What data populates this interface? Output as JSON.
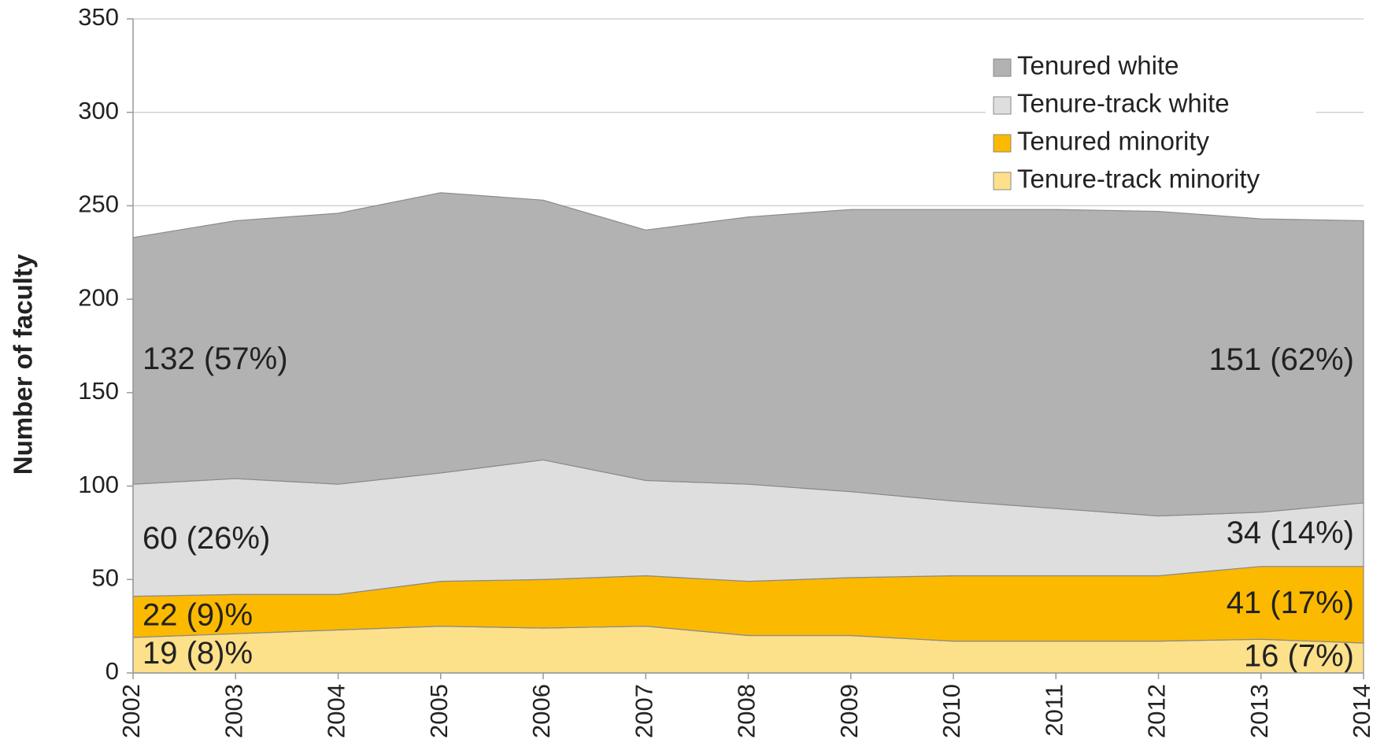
{
  "chart_data": {
    "type": "stacked-area",
    "y_label": "Number of faculty",
    "categories": [
      "2002",
      "2003",
      "2004",
      "2005",
      "2006",
      "2007",
      "2008",
      "2009",
      "2010",
      "2011",
      "2012",
      "2013",
      "2014"
    ],
    "series": [
      {
        "name": "Tenure-track minority",
        "color": "#fde08a",
        "values": [
          19,
          21,
          23,
          25,
          24,
          25,
          20,
          20,
          17,
          17,
          17,
          18,
          16
        ],
        "value_labels": [
          "19 (8)%",
          null,
          null,
          null,
          null,
          null,
          null,
          null,
          null,
          null,
          null,
          null,
          "16 (7%)"
        ]
      },
      {
        "name": "Tenured minority",
        "color": "#fbb900",
        "values": [
          22,
          21,
          19,
          24,
          26,
          27,
          29,
          31,
          35,
          35,
          35,
          39,
          41
        ],
        "value_labels": [
          "22 (9)%",
          null,
          null,
          null,
          null,
          null,
          null,
          null,
          null,
          null,
          null,
          null,
          "41 (17%)"
        ]
      },
      {
        "name": "Tenure-track white",
        "color": "#dedede",
        "values": [
          60,
          62,
          59,
          58,
          64,
          51,
          52,
          46,
          40,
          36,
          32,
          29,
          34
        ],
        "value_labels": [
          "60 (26%)",
          null,
          null,
          null,
          null,
          null,
          null,
          null,
          null,
          null,
          null,
          null,
          "34 (14%)"
        ]
      },
      {
        "name": "Tenured white",
        "color": "#b2b2b2",
        "values": [
          132,
          138,
          145,
          150,
          139,
          134,
          143,
          151,
          156,
          160,
          163,
          157,
          151
        ],
        "value_labels": [
          "132 (57%)",
          null,
          null,
          null,
          null,
          null,
          null,
          null,
          null,
          null,
          null,
          null,
          "151 (62%)"
        ]
      }
    ],
    "ylim": [
      0,
      350
    ],
    "yticks": [
      0,
      50,
      100,
      150,
      200,
      250,
      300,
      350
    ],
    "grid": true,
    "legend": "top-right"
  }
}
